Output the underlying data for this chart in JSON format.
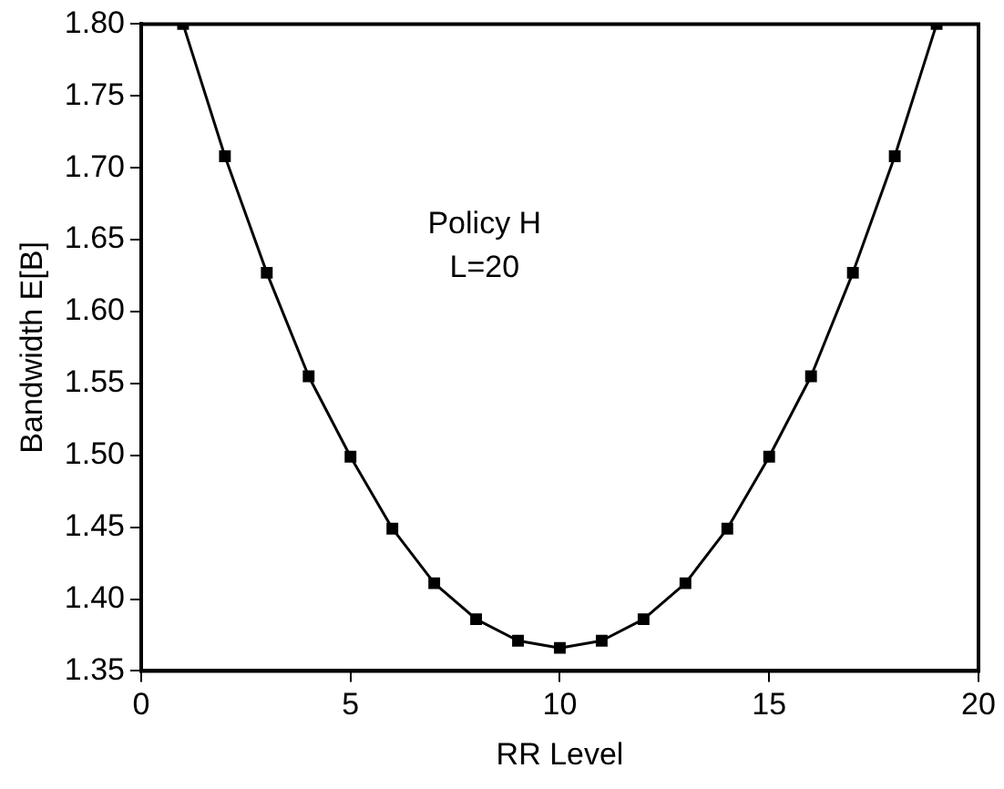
{
  "chart_data": {
    "type": "line",
    "xlabel": "RR Level",
    "ylabel": "Bandwidth E[B]",
    "annotations": [
      "Policy H",
      "L=20"
    ],
    "x": [
      1,
      2,
      3,
      4,
      5,
      6,
      7,
      8,
      9,
      10,
      11,
      12,
      13,
      14,
      15,
      16,
      17,
      18,
      19
    ],
    "series": [
      {
        "color": "#000000",
        "values": [
          1.8,
          1.708,
          1.627,
          1.555,
          1.499,
          1.449,
          1.411,
          1.386,
          1.371,
          1.366,
          1.371,
          1.386,
          1.411,
          1.449,
          1.499,
          1.555,
          1.627,
          1.708,
          1.8
        ]
      }
    ],
    "xlim": [
      0,
      20
    ],
    "xticks": [
      0,
      5,
      10,
      15,
      20
    ],
    "ylim": [
      1.35,
      1.8
    ],
    "yticks": [
      {
        "value": 1.35,
        "label": "1.35"
      },
      {
        "value": 1.4,
        "label": "1.40"
      },
      {
        "value": 1.45,
        "label": "1.45"
      },
      {
        "value": 1.5,
        "label": "1.50"
      },
      {
        "value": 1.55,
        "label": "1.55"
      },
      {
        "value": 1.6,
        "label": "1.60"
      },
      {
        "value": 1.65,
        "label": "1.65"
      },
      {
        "value": 1.7,
        "label": "1.70"
      },
      {
        "value": 1.75,
        "label": "1.75"
      },
      {
        "value": 1.8,
        "label": "1.80"
      }
    ],
    "grid": false,
    "legend": false,
    "marker": "square",
    "line_style": "solid"
  }
}
